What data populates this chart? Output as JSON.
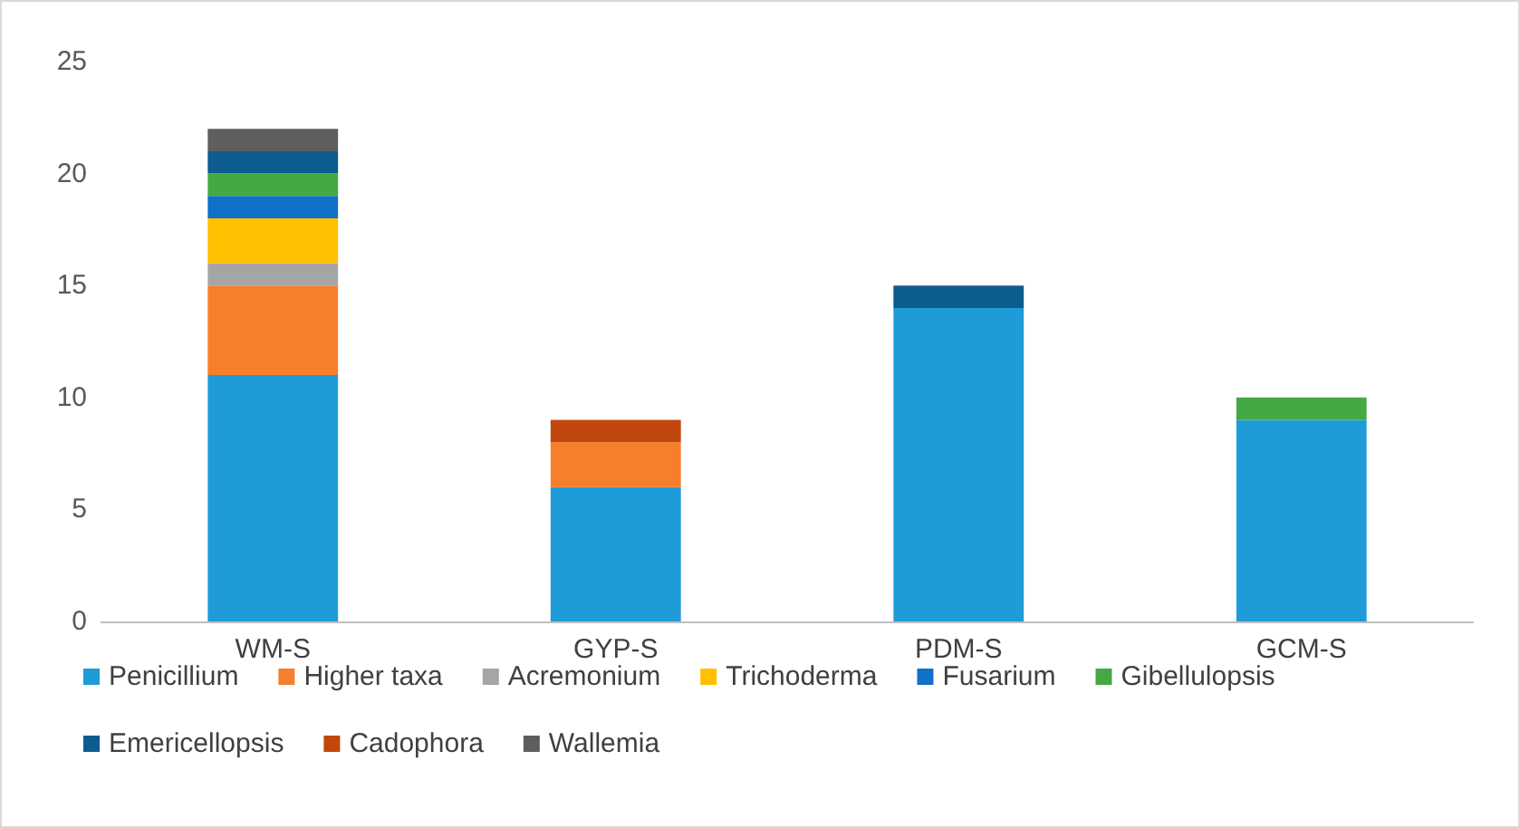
{
  "chart_data": {
    "type": "bar",
    "stacked": true,
    "categories": [
      "WM-S",
      "GYP-S",
      "PDM-S",
      "GCM-S"
    ],
    "ylim": [
      0,
      25
    ],
    "yticks": [
      0,
      5,
      10,
      15,
      20,
      25
    ],
    "grid": false,
    "legend": "bottom",
    "series": [
      {
        "name": "Penicillium",
        "color": "#1f9bd7",
        "values": [
          11,
          6,
          14,
          9
        ]
      },
      {
        "name": "Higher taxa",
        "color": "#f57f2b",
        "values": [
          4,
          2,
          0,
          0
        ]
      },
      {
        "name": "Acremonium",
        "color": "#a5a5a5",
        "values": [
          1,
          0,
          0,
          0
        ]
      },
      {
        "name": "Trichoderma",
        "color": "#ffc000",
        "values": [
          2,
          0,
          0,
          0
        ]
      },
      {
        "name": "Fusarium",
        "color": "#1170c8",
        "values": [
          1,
          0,
          0,
          0
        ]
      },
      {
        "name": "Gibellulopsis",
        "color": "#44a843",
        "values": [
          1,
          0,
          0,
          1
        ]
      },
      {
        "name": "Emericellopsis",
        "color": "#0d5c8e",
        "values": [
          1,
          0,
          1,
          0
        ]
      },
      {
        "name": "Cadophora",
        "color": "#c1470c",
        "values": [
          0,
          1,
          0,
          0
        ]
      },
      {
        "name": "Wallemia",
        "color": "#5e5e5e",
        "values": [
          1,
          0,
          0,
          0
        ]
      }
    ]
  }
}
